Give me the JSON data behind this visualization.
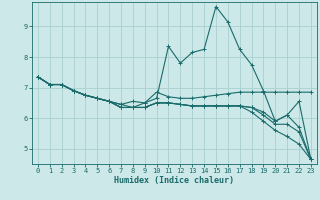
{
  "xlabel": "Humidex (Indice chaleur)",
  "background_color": "#cce8e8",
  "line_color": "#1a6b6b",
  "grid_color": "#aad0d0",
  "xlim": [
    -0.5,
    23.5
  ],
  "ylim": [
    4.5,
    9.8
  ],
  "yticks": [
    5,
    6,
    7,
    8,
    9
  ],
  "xticks": [
    0,
    1,
    2,
    3,
    4,
    5,
    6,
    7,
    8,
    9,
    10,
    11,
    12,
    13,
    14,
    15,
    16,
    17,
    18,
    19,
    20,
    21,
    22,
    23
  ],
  "lines": [
    {
      "x": [
        0,
        1,
        2,
        3,
        4,
        5,
        6,
        7,
        8,
        9,
        10,
        11,
        12,
        13,
        14,
        15,
        16,
        17,
        18,
        19,
        20,
        21,
        22,
        23
      ],
      "y": [
        7.35,
        7.1,
        7.1,
        6.9,
        6.75,
        6.65,
        6.55,
        6.45,
        6.35,
        6.5,
        6.65,
        8.35,
        7.8,
        8.15,
        8.25,
        9.65,
        9.15,
        8.25,
        7.75,
        6.9,
        5.9,
        6.1,
        6.55,
        4.65
      ]
    },
    {
      "x": [
        0,
        1,
        2,
        3,
        4,
        5,
        6,
        7,
        8,
        9,
        10,
        11,
        12,
        13,
        14,
        15,
        16,
        17,
        18,
        19,
        20,
        21,
        22,
        23
      ],
      "y": [
        7.35,
        7.1,
        7.1,
        6.9,
        6.75,
        6.65,
        6.55,
        6.45,
        6.55,
        6.5,
        6.85,
        6.7,
        6.65,
        6.65,
        6.7,
        6.75,
        6.8,
        6.85,
        6.85,
        6.85,
        6.85,
        6.85,
        6.85,
        6.85
      ]
    },
    {
      "x": [
        0,
        1,
        2,
        3,
        4,
        5,
        6,
        7,
        8,
        9,
        10,
        11,
        12,
        13,
        14,
        15,
        16,
        17,
        18,
        19,
        20,
        21,
        22,
        23
      ],
      "y": [
        7.35,
        7.1,
        7.1,
        6.9,
        6.75,
        6.65,
        6.55,
        6.35,
        6.35,
        6.35,
        6.5,
        6.5,
        6.45,
        6.4,
        6.4,
        6.4,
        6.4,
        6.4,
        6.35,
        6.2,
        5.9,
        6.1,
        5.7,
        4.65
      ]
    },
    {
      "x": [
        0,
        1,
        2,
        3,
        4,
        5,
        6,
        7,
        8,
        9,
        10,
        11,
        12,
        13,
        14,
        15,
        16,
        17,
        18,
        19,
        20,
        21,
        22,
        23
      ],
      "y": [
        7.35,
        7.1,
        7.1,
        6.9,
        6.75,
        6.65,
        6.55,
        6.35,
        6.35,
        6.35,
        6.5,
        6.5,
        6.45,
        6.4,
        6.4,
        6.4,
        6.4,
        6.4,
        6.35,
        6.1,
        5.8,
        5.8,
        5.55,
        4.65
      ]
    },
    {
      "x": [
        0,
        1,
        2,
        3,
        4,
        5,
        6,
        7,
        8,
        9,
        10,
        11,
        12,
        13,
        14,
        15,
        16,
        17,
        18,
        19,
        20,
        21,
        22,
        23
      ],
      "y": [
        7.35,
        7.1,
        7.1,
        6.9,
        6.75,
        6.65,
        6.55,
        6.35,
        6.35,
        6.35,
        6.5,
        6.5,
        6.45,
        6.4,
        6.4,
        6.4,
        6.4,
        6.4,
        6.2,
        5.9,
        5.6,
        5.4,
        5.15,
        4.65
      ]
    }
  ]
}
